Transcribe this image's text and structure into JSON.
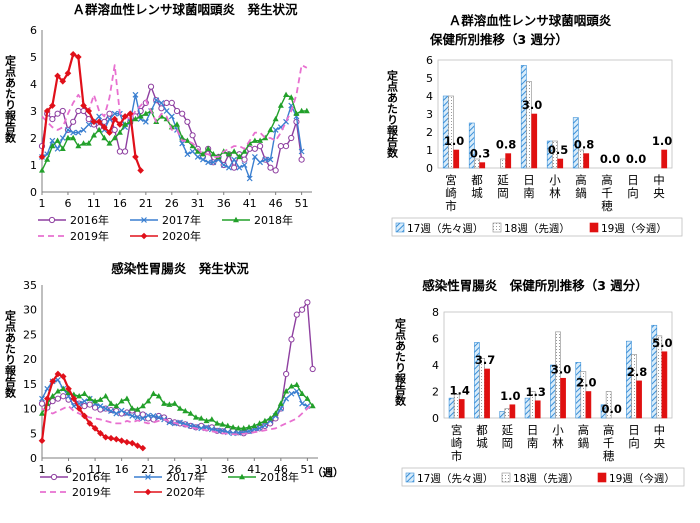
{
  "legend_labels": {
    "y2016": "2016年",
    "y2017": "2017年",
    "y2018": "2018年",
    "y2019": "2019年",
    "y2020": "2020年",
    "wk17": "17週（先々週）",
    "wk18": "18週（先週）",
    "wk19": "19週（今週）"
  },
  "colors": {
    "y2016": "#8e3fa0",
    "y2017": "#3a7fd0",
    "y2018": "#22a02a",
    "y2019": "#e870d0",
    "y2020": "#e0101a",
    "wk17": "#3a8fd8",
    "wk18": "#a8a8a8",
    "wk19": "#e01010"
  },
  "chart_data": [
    {
      "id": "strep-line",
      "type": "line",
      "title": "Ａ群溶血性レンサ球菌咽頭炎　発生状況",
      "ylabel": "定点あたり報告数",
      "xlabel": "",
      "x_ticks": [
        "1",
        "6",
        "11",
        "16",
        "21",
        "26",
        "31",
        "36",
        "41",
        "46",
        "51"
      ],
      "xlim": [
        1,
        53
      ],
      "ylim": [
        0,
        6
      ],
      "y_ticks": [
        0,
        1,
        2,
        3,
        4,
        5,
        6
      ],
      "grid": false,
      "legend_position": "bottom",
      "series": [
        {
          "name": "2016年",
          "key": "y2016",
          "marker": "circle-open",
          "dashed": false,
          "values": [
            1.7,
            2.9,
            2.7,
            2.9,
            3.0,
            2.3,
            2.6,
            3.0,
            3.0,
            2.7,
            2.5,
            2.4,
            2.6,
            2.9,
            2.3,
            1.5,
            1.5,
            2.6,
            2.8,
            3.0,
            3.3,
            3.9,
            3.4,
            3.1,
            3.3,
            3.3,
            3.0,
            2.9,
            2.6,
            2.1,
            1.6,
            1.3,
            1.6,
            1.1,
            1.3,
            1.0,
            1.4,
            0.9,
            1.4,
            1.2,
            1.6,
            1.6,
            1.7,
            1.2,
            0.9,
            0.8,
            1.7,
            1.7,
            2.0,
            2.6,
            1.2
          ]
        },
        {
          "name": "2017年",
          "key": "y2017",
          "marker": "x",
          "dashed": false,
          "values": [
            1.3,
            1.4,
            1.9,
            1.6,
            2.0,
            2.3,
            2.2,
            2.2,
            2.3,
            2.5,
            2.6,
            2.8,
            2.3,
            2.7,
            2.9,
            2.9,
            2.4,
            2.6,
            3.6,
            2.7,
            2.6,
            3.0,
            3.4,
            3.3,
            3.0,
            2.8,
            2.3,
            1.8,
            1.4,
            1.5,
            1.3,
            1.2,
            1.1,
            1.1,
            1.2,
            1.0,
            0.9,
            1.2,
            0.9,
            1.0,
            0.5,
            1.3,
            1.1,
            1.2,
            1.2,
            2.3,
            2.4,
            2.6,
            3.2,
            2.8,
            1.5
          ]
        },
        {
          "name": "2018年",
          "key": "y2018",
          "marker": "triangle",
          "dashed": false,
          "values": [
            0.8,
            1.2,
            1.7,
            1.9,
            1.6,
            2.0,
            2.0,
            1.7,
            1.8,
            1.8,
            2.1,
            2.3,
            2.0,
            1.8,
            2.0,
            2.2,
            2.5,
            2.6,
            2.7,
            2.8,
            2.9,
            3.0,
            2.6,
            2.8,
            2.7,
            2.4,
            2.5,
            2.0,
            1.9,
            1.7,
            1.5,
            1.4,
            1.6,
            1.4,
            1.3,
            1.5,
            1.4,
            1.5,
            1.3,
            1.5,
            1.8,
            1.9,
            1.9,
            2.0,
            2.3,
            2.7,
            3.2,
            3.6,
            3.5,
            2.9,
            3.0,
            3.0
          ]
        },
        {
          "name": "2019年",
          "key": "y2019",
          "marker": "none",
          "dashed": true,
          "values": [
            2.8,
            2.6,
            2.4,
            2.3,
            2.4,
            2.9,
            3.3,
            3.6,
            3.3,
            3.0,
            3.6,
            3.0,
            2.8,
            3.5,
            4.7,
            2.9,
            2.8,
            2.7,
            3.0,
            3.2,
            3.4,
            3.0,
            2.6,
            2.9,
            2.8,
            2.3,
            2.3,
            1.9,
            1.9,
            1.8,
            1.6,
            1.4,
            1.4,
            1.3,
            1.3,
            1.5,
            1.6,
            1.7,
            1.7,
            1.6,
            1.9,
            2.2,
            2.2,
            2.0,
            2.0,
            1.9,
            2.2,
            2.6,
            3.0,
            3.6,
            4.7,
            4.6
          ]
        },
        {
          "name": "2020年",
          "key": "y2020",
          "marker": "diamond",
          "dashed": false,
          "values": [
            1.3,
            3.0,
            3.2,
            4.3,
            4.1,
            4.4,
            5.1,
            5.0,
            3.2,
            3.0,
            2.6,
            2.6,
            2.4,
            2.2,
            2.7,
            2.5,
            2.8,
            2.9,
            1.3,
            0.8
          ]
        }
      ]
    },
    {
      "id": "strep-bar",
      "type": "bar",
      "title": "Ａ群溶血性レンサ球菌咽頭炎",
      "subtitle": "保健所別推移（3 週分）",
      "ylabel": "定点あたり報告数",
      "categories": [
        "宮崎市",
        "都城",
        "延岡",
        "日南",
        "小林",
        "高鍋",
        "高千穂",
        "日向",
        "中央"
      ],
      "ylim": [
        0,
        6
      ],
      "y_ticks": [
        0,
        1,
        2,
        3,
        4,
        5,
        6
      ],
      "legend_position": "bottom",
      "data_label_series": "19週（今週）",
      "series": [
        {
          "name": "17週（先々週）",
          "key": "wk17",
          "values": [
            4.0,
            2.5,
            0.0,
            5.7,
            1.5,
            2.8,
            0.0,
            0.0,
            0.0
          ]
        },
        {
          "name": "18週（先週）",
          "key": "wk18",
          "values": [
            4.0,
            0.5,
            0.5,
            4.8,
            1.5,
            1.0,
            0.0,
            0.0,
            0.0
          ]
        },
        {
          "name": "19週（今週）",
          "key": "wk19",
          "values": [
            1.0,
            0.3,
            0.8,
            3.0,
            0.5,
            0.8,
            0.0,
            0.0,
            1.0
          ]
        }
      ],
      "data_labels": [
        "1.0",
        "0.3",
        "0.8",
        "3.0",
        "0.5",
        "0.8",
        "0.0",
        "0.0",
        "1.0"
      ]
    },
    {
      "id": "gastro-line",
      "type": "line",
      "title": "感染性胃腸炎　発生状況",
      "ylabel": "定点あたり報告数",
      "xlabel": "（週）",
      "x_ticks": [
        "1",
        "6",
        "11",
        "16",
        "21",
        "26",
        "31",
        "36",
        "41",
        "46",
        "51"
      ],
      "xlim": [
        1,
        53
      ],
      "ylim": [
        0,
        35
      ],
      "y_ticks": [
        0,
        5,
        10,
        15,
        20,
        25,
        30,
        35
      ],
      "grid": false,
      "legend_position": "bottom",
      "series": [
        {
          "name": "2016年",
          "key": "y2016",
          "marker": "circle-open",
          "dashed": false,
          "values": [
            11.0,
            10.2,
            11.5,
            12.0,
            12.5,
            11.8,
            11.5,
            11.0,
            10.5,
            10.8,
            10.2,
            9.8,
            10.0,
            9.7,
            9.5,
            9.0,
            9.2,
            9.6,
            9.0,
            8.8,
            8.0,
            7.8,
            8.5,
            8.2,
            7.5,
            7.2,
            7.0,
            6.8,
            6.5,
            6.2,
            6.5,
            6.0,
            6.2,
            5.5,
            5.4,
            5.8,
            5.5,
            5.2,
            5.0,
            5.5,
            5.8,
            6.0,
            6.5,
            7.0,
            8.0,
            10.0,
            17.0,
            24.0,
            29.0,
            30.0,
            31.5,
            18.0
          ]
        },
        {
          "name": "2017年",
          "key": "y2017",
          "marker": "x",
          "dashed": false,
          "values": [
            12.0,
            14.0,
            15.5,
            15.8,
            14.0,
            12.5,
            10.5,
            11.0,
            11.5,
            12.0,
            11.0,
            10.5,
            10.0,
            9.5,
            9.0,
            9.6,
            9.0,
            8.5,
            8.2,
            8.0,
            8.6,
            8.5,
            8.2,
            7.8,
            7.2,
            7.0,
            7.2,
            6.8,
            6.5,
            6.3,
            6.0,
            6.2,
            5.8,
            5.6,
            5.5,
            5.2,
            5.0,
            5.1,
            5.2,
            5.4,
            5.8,
            6.0,
            6.6,
            7.5,
            8.5,
            10.0,
            12.0,
            13.0,
            13.5,
            11.0,
            10.5
          ]
        },
        {
          "name": "2018年",
          "key": "y2018",
          "marker": "triangle",
          "dashed": false,
          "values": [
            9.0,
            11.0,
            12.5,
            13.5,
            14.0,
            13.2,
            12.8,
            12.5,
            13.0,
            12.0,
            11.5,
            11.8,
            12.5,
            11.0,
            10.5,
            11.5,
            12.0,
            10.0,
            9.8,
            10.5,
            11.5,
            13.0,
            12.5,
            11.0,
            10.8,
            11.0,
            10.0,
            9.5,
            9.0,
            8.2,
            8.0,
            7.5,
            7.8,
            7.0,
            6.8,
            6.5,
            6.2,
            6.0,
            6.0,
            6.2,
            6.5,
            7.0,
            7.5,
            8.0,
            9.0,
            11.0,
            13.5,
            14.5,
            14.8,
            13.0,
            12.0,
            10.5
          ]
        },
        {
          "name": "2019年",
          "key": "y2019",
          "marker": "none",
          "dashed": true,
          "values": [
            10.0,
            9.5,
            9.0,
            9.5,
            10.0,
            10.5,
            9.5,
            9.0,
            8.5,
            8.2,
            8.0,
            7.8,
            7.5,
            7.2,
            7.0,
            7.0,
            7.5,
            7.2,
            7.6,
            7.3,
            7.0,
            7.2,
            7.5,
            7.8,
            7.4,
            7.1,
            6.8,
            6.5,
            6.2,
            6.0,
            5.8,
            5.6,
            5.4,
            5.2,
            5.0,
            4.9,
            4.8,
            4.8,
            4.9,
            5.0,
            5.2,
            5.4,
            5.6,
            5.8,
            6.0,
            6.5,
            7.0,
            7.5,
            8.0,
            9.0,
            10.0,
            11.0
          ]
        },
        {
          "name": "2020年",
          "key": "y2020",
          "marker": "diamond",
          "dashed": false,
          "values": [
            3.5,
            12.0,
            15.5,
            17.0,
            16.5,
            14.0,
            12.0,
            10.0,
            8.5,
            7.0,
            6.0,
            5.0,
            4.2,
            4.0,
            3.8,
            3.5,
            3.2,
            3.0,
            2.5,
            2.0
          ]
        }
      ]
    },
    {
      "id": "gastro-bar",
      "type": "bar",
      "title": "感染性胃腸炎　保健所別推移（3 週分）",
      "ylabel": "定点あたり報告数",
      "categories": [
        "宮崎市",
        "都城",
        "延岡",
        "日南",
        "小林",
        "高鍋",
        "高千穂",
        "日向",
        "中央"
      ],
      "ylim": [
        0,
        8
      ],
      "y_ticks": [
        0,
        2,
        4,
        6,
        8
      ],
      "legend_position": "bottom",
      "data_label_series": "19週（今週）",
      "series": [
        {
          "name": "17週（先々週）",
          "key": "wk17",
          "values": [
            1.5,
            5.7,
            0.5,
            1.5,
            4.0,
            4.2,
            1.0,
            5.8,
            7.0
          ]
        },
        {
          "name": "18週（先週）",
          "key": "wk18",
          "values": [
            1.8,
            4.5,
            0.7,
            2.0,
            6.5,
            3.5,
            2.0,
            4.8,
            6.2
          ]
        },
        {
          "name": "19週（今週）",
          "key": "wk19",
          "values": [
            1.4,
            3.7,
            1.0,
            1.3,
            3.0,
            2.0,
            0.0,
            2.8,
            5.0
          ]
        }
      ],
      "data_labels": [
        "1.4",
        "3.7",
        "1.0",
        "1.3",
        "3.0",
        "2.0",
        "0.0",
        "2.8",
        "5.0"
      ]
    }
  ]
}
